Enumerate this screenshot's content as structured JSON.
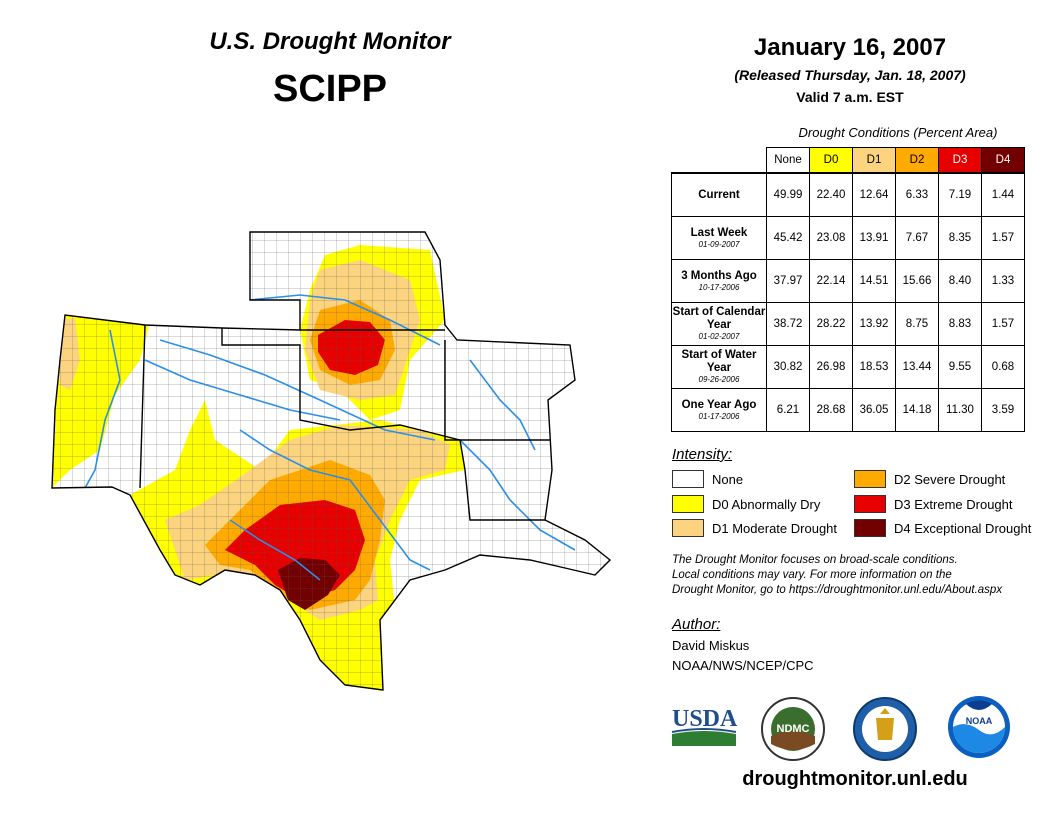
{
  "header": {
    "title": "U.S. Drought Monitor",
    "region": "SCIPP",
    "date": "January 16, 2007",
    "released": "(Released Thursday, Jan. 18, 2007)",
    "valid": "Valid 7 a.m. EST"
  },
  "table": {
    "caption": "Drought Conditions (Percent Area)",
    "columns": [
      "None",
      "D0",
      "D1",
      "D2",
      "D3",
      "D4"
    ],
    "column_colors": [
      "#ffffff",
      "#ffff00",
      "#fcd37f",
      "#ffaa00",
      "#e60000",
      "#730000"
    ],
    "rows": [
      {
        "label": "Current",
        "date": "",
        "values": [
          "49.99",
          "22.40",
          "12.64",
          "6.33",
          "7.19",
          "1.44"
        ]
      },
      {
        "label": "Last Week",
        "date": "01-09-2007",
        "values": [
          "45.42",
          "23.08",
          "13.91",
          "7.67",
          "8.35",
          "1.57"
        ]
      },
      {
        "label": "3 Months Ago",
        "date": "10-17-2006",
        "values": [
          "37.97",
          "22.14",
          "14.51",
          "15.66",
          "8.40",
          "1.33"
        ]
      },
      {
        "label": "Start of Calendar Year",
        "date": "01-02-2007",
        "values": [
          "38.72",
          "28.22",
          "13.92",
          "8.75",
          "8.83",
          "1.57"
        ]
      },
      {
        "label": "Start of Water Year",
        "date": "09-26-2006",
        "values": [
          "30.82",
          "26.98",
          "18.53",
          "13.44",
          "9.55",
          "0.68"
        ]
      },
      {
        "label": "One Year Ago",
        "date": "01-17-2006",
        "values": [
          "6.21",
          "28.68",
          "36.05",
          "14.18",
          "11.30",
          "3.59"
        ]
      }
    ]
  },
  "legend": {
    "title": "Intensity:",
    "items": [
      {
        "label": "None",
        "color": "#ffffff"
      },
      {
        "label": "D0 Abnormally Dry",
        "color": "#ffff00"
      },
      {
        "label": "D1 Moderate Drought",
        "color": "#fcd37f"
      },
      {
        "label": "D2 Severe Drought",
        "color": "#ffaa00"
      },
      {
        "label": "D3 Extreme Drought",
        "color": "#e60000"
      },
      {
        "label": "D4 Exceptional Drought",
        "color": "#730000"
      }
    ]
  },
  "note": {
    "line1": "The Drought Monitor focuses on broad-scale conditions.",
    "line2": "Local conditions may vary. For more information on the",
    "line3": "Drought Monitor, go to https://droughtmonitor.unl.edu/About.aspx"
  },
  "author": {
    "label": "Author:",
    "name": "David Miskus",
    "org": "NOAA/NWS/NCEP/CPC"
  },
  "logos": {
    "usda": "USDA",
    "ndmc": "NDMC",
    "noaa": "NOAA"
  },
  "footer": {
    "url": "droughtmonitor.unl.edu"
  }
}
